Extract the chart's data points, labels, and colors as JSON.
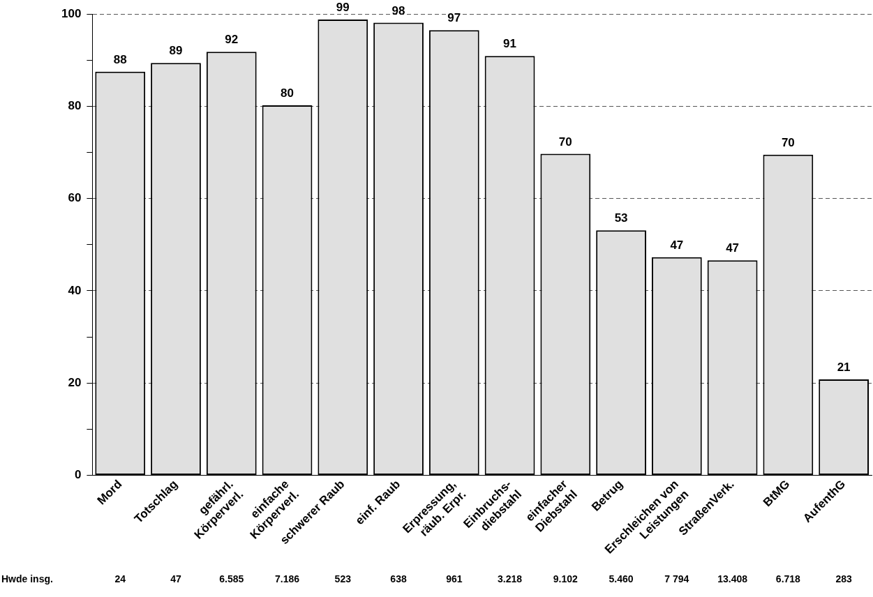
{
  "chart_data": {
    "type": "bar",
    "categories": [
      "Mord",
      "Totschlag",
      "gefährl.\nKörperverl.",
      "einfache\nKörperverl.",
      "schwerer Raub",
      "einf. Raub",
      "Erpressung,\nräub. Erpr.",
      "Einbruchs-\ndiebstahl",
      "einfacher\nDiebstahl",
      "Betrug",
      "Erschleichen von\nLeistungen",
      "StraßenVerk.",
      "BtMG",
      "AufenthG"
    ],
    "values": [
      87.5,
      89.4,
      91.8,
      80.2,
      98.8,
      98.1,
      96.5,
      90.9,
      69.7,
      53.1,
      47.3,
      46.6,
      69.5,
      20.8
    ],
    "value_labels": [
      "88",
      "89",
      "92",
      "80",
      "99",
      "98",
      "97",
      "91",
      "70",
      "53",
      "47",
      "47",
      "70",
      "21"
    ],
    "color": "#e0e0e0",
    "ylim": [
      0,
      100
    ],
    "yticks": [
      0,
      {
        "value": 10,
        "label": null
      },
      20,
      {
        "value": 30,
        "label": null
      },
      40,
      {
        "value": 50,
        "label": null
      },
      60,
      {
        "value": 70,
        "label": null
      },
      80,
      {
        "value": 90,
        "label": null
      },
      100
    ],
    "grid": "y",
    "line_style": "dashed",
    "annotations": [
      "Hwde insg.",
      "24",
      "47",
      "6.585",
      "7.186",
      "523",
      "638",
      "961",
      "3.218",
      "9.102",
      "5.460",
      "7 794",
      "13.408",
      "6.718",
      "283"
    ]
  }
}
